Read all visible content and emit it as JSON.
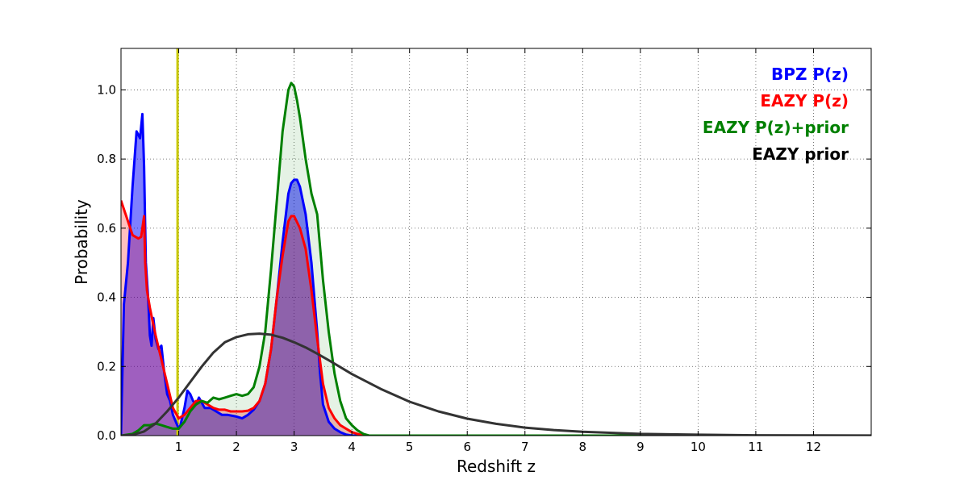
{
  "chart_data": {
    "type": "line",
    "xlabel": "Redshift z",
    "ylabel": "Probability",
    "xlim": [
      0,
      13
    ],
    "ylim": [
      0,
      1.12
    ],
    "grid": true,
    "legend_placement": "top-right",
    "x_ticks": [
      1,
      2,
      3,
      4,
      5,
      6,
      7,
      8,
      9,
      10,
      11,
      12
    ],
    "x_tick_labels": [
      "1",
      "2",
      "3",
      "4",
      "5",
      "6",
      "7",
      "8",
      "9",
      "10",
      "11",
      "12"
    ],
    "y_ticks": [
      0,
      0.2,
      0.4,
      0.6,
      0.8,
      1.0
    ],
    "y_tick_labels": [
      "0.0",
      "0.2",
      "0.4",
      "0.6",
      "0.8",
      "1.0"
    ],
    "vertical_marker": {
      "x": 0.98,
      "color": "#c8c800"
    },
    "series": [
      {
        "name": "BPZ P(z)",
        "color": "#0000ff",
        "fill": "#0000ff",
        "fill_opacity": 0.5,
        "points": [
          [
            0,
            0
          ],
          [
            0.05,
            0.38
          ],
          [
            0.12,
            0.5
          ],
          [
            0.2,
            0.72
          ],
          [
            0.27,
            0.88
          ],
          [
            0.3,
            0.87
          ],
          [
            0.33,
            0.86
          ],
          [
            0.37,
            0.93
          ],
          [
            0.4,
            0.78
          ],
          [
            0.43,
            0.5
          ],
          [
            0.47,
            0.4
          ],
          [
            0.5,
            0.29
          ],
          [
            0.53,
            0.26
          ],
          [
            0.56,
            0.34
          ],
          [
            0.6,
            0.28
          ],
          [
            0.65,
            0.25
          ],
          [
            0.7,
            0.26
          ],
          [
            0.75,
            0.18
          ],
          [
            0.8,
            0.12
          ],
          [
            0.85,
            0.1
          ],
          [
            0.9,
            0.06
          ],
          [
            0.95,
            0.04
          ],
          [
            1.0,
            0.02
          ],
          [
            1.03,
            0.03
          ],
          [
            1.1,
            0.08
          ],
          [
            1.15,
            0.13
          ],
          [
            1.2,
            0.12
          ],
          [
            1.25,
            0.1
          ],
          [
            1.3,
            0.09
          ],
          [
            1.35,
            0.11
          ],
          [
            1.45,
            0.08
          ],
          [
            1.55,
            0.08
          ],
          [
            1.65,
            0.07
          ],
          [
            1.75,
            0.06
          ],
          [
            1.85,
            0.06
          ],
          [
            2.0,
            0.055
          ],
          [
            2.1,
            0.05
          ],
          [
            2.2,
            0.06
          ],
          [
            2.3,
            0.075
          ],
          [
            2.4,
            0.1
          ],
          [
            2.5,
            0.15
          ],
          [
            2.6,
            0.25
          ],
          [
            2.7,
            0.4
          ],
          [
            2.8,
            0.56
          ],
          [
            2.9,
            0.7
          ],
          [
            2.95,
            0.73
          ],
          [
            3.0,
            0.74
          ],
          [
            3.05,
            0.74
          ],
          [
            3.1,
            0.72
          ],
          [
            3.2,
            0.64
          ],
          [
            3.3,
            0.5
          ],
          [
            3.4,
            0.3
          ],
          [
            3.45,
            0.18
          ],
          [
            3.5,
            0.09
          ],
          [
            3.6,
            0.04
          ],
          [
            3.7,
            0.02
          ],
          [
            3.8,
            0.01
          ],
          [
            3.9,
            0.003
          ],
          [
            4.0,
            0
          ],
          [
            13,
            0
          ]
        ]
      },
      {
        "name": "EAZY P(z)",
        "color": "#ff0000",
        "fill": "#ff0000",
        "fill_opacity": 0.25,
        "points": [
          [
            0,
            0.68
          ],
          [
            0.1,
            0.63
          ],
          [
            0.2,
            0.58
          ],
          [
            0.3,
            0.57
          ],
          [
            0.35,
            0.575
          ],
          [
            0.37,
            0.6
          ],
          [
            0.4,
            0.635
          ],
          [
            0.42,
            0.5
          ],
          [
            0.45,
            0.42
          ],
          [
            0.5,
            0.37
          ],
          [
            0.55,
            0.33
          ],
          [
            0.6,
            0.29
          ],
          [
            0.7,
            0.22
          ],
          [
            0.8,
            0.15
          ],
          [
            0.9,
            0.08
          ],
          [
            1.0,
            0.05
          ],
          [
            1.1,
            0.06
          ],
          [
            1.2,
            0.08
          ],
          [
            1.3,
            0.1
          ],
          [
            1.4,
            0.1
          ],
          [
            1.5,
            0.09
          ],
          [
            1.6,
            0.08
          ],
          [
            1.7,
            0.075
          ],
          [
            1.8,
            0.075
          ],
          [
            1.9,
            0.07
          ],
          [
            2.0,
            0.07
          ],
          [
            2.1,
            0.07
          ],
          [
            2.2,
            0.072
          ],
          [
            2.3,
            0.08
          ],
          [
            2.4,
            0.1
          ],
          [
            2.5,
            0.15
          ],
          [
            2.6,
            0.25
          ],
          [
            2.7,
            0.4
          ],
          [
            2.8,
            0.52
          ],
          [
            2.9,
            0.62
          ],
          [
            2.95,
            0.635
          ],
          [
            3.0,
            0.635
          ],
          [
            3.1,
            0.6
          ],
          [
            3.2,
            0.54
          ],
          [
            3.3,
            0.42
          ],
          [
            3.4,
            0.28
          ],
          [
            3.5,
            0.15
          ],
          [
            3.6,
            0.08
          ],
          [
            3.7,
            0.05
          ],
          [
            3.8,
            0.03
          ],
          [
            3.9,
            0.02
          ],
          [
            4.0,
            0.01
          ],
          [
            4.1,
            0.005
          ],
          [
            4.2,
            0
          ],
          [
            13,
            0
          ]
        ]
      },
      {
        "name": "EAZY P(z)+prior",
        "color": "#008000",
        "fill": "#008000",
        "fill_opacity": 0.1,
        "points": [
          [
            0,
            0
          ],
          [
            0.2,
            0.005
          ],
          [
            0.3,
            0.015
          ],
          [
            0.4,
            0.03
          ],
          [
            0.5,
            0.03
          ],
          [
            0.6,
            0.035
          ],
          [
            0.7,
            0.03
          ],
          [
            0.8,
            0.025
          ],
          [
            0.9,
            0.02
          ],
          [
            1.0,
            0.02
          ],
          [
            1.1,
            0.04
          ],
          [
            1.2,
            0.07
          ],
          [
            1.3,
            0.09
          ],
          [
            1.4,
            0.1
          ],
          [
            1.5,
            0.095
          ],
          [
            1.6,
            0.11
          ],
          [
            1.7,
            0.105
          ],
          [
            1.8,
            0.11
          ],
          [
            1.9,
            0.115
          ],
          [
            2.0,
            0.12
          ],
          [
            2.1,
            0.115
          ],
          [
            2.2,
            0.12
          ],
          [
            2.3,
            0.14
          ],
          [
            2.4,
            0.2
          ],
          [
            2.5,
            0.3
          ],
          [
            2.6,
            0.48
          ],
          [
            2.7,
            0.68
          ],
          [
            2.8,
            0.88
          ],
          [
            2.9,
            1.0
          ],
          [
            2.95,
            1.02
          ],
          [
            3.0,
            1.01
          ],
          [
            3.05,
            0.97
          ],
          [
            3.1,
            0.92
          ],
          [
            3.2,
            0.8
          ],
          [
            3.3,
            0.7
          ],
          [
            3.4,
            0.64
          ],
          [
            3.5,
            0.45
          ],
          [
            3.6,
            0.3
          ],
          [
            3.7,
            0.18
          ],
          [
            3.8,
            0.1
          ],
          [
            3.9,
            0.05
          ],
          [
            4.0,
            0.03
          ],
          [
            4.1,
            0.015
          ],
          [
            4.2,
            0.005
          ],
          [
            4.3,
            0
          ],
          [
            13,
            0
          ]
        ]
      },
      {
        "name": "EAZY prior",
        "color": "#333333",
        "fill": null,
        "fill_opacity": 0,
        "points": [
          [
            0,
            0
          ],
          [
            0.2,
            0.002
          ],
          [
            0.4,
            0.012
          ],
          [
            0.6,
            0.035
          ],
          [
            0.8,
            0.07
          ],
          [
            1.0,
            0.11
          ],
          [
            1.2,
            0.155
          ],
          [
            1.4,
            0.2
          ],
          [
            1.6,
            0.24
          ],
          [
            1.8,
            0.27
          ],
          [
            2.0,
            0.285
          ],
          [
            2.2,
            0.293
          ],
          [
            2.4,
            0.295
          ],
          [
            2.6,
            0.292
          ],
          [
            2.8,
            0.283
          ],
          [
            3.0,
            0.27
          ],
          [
            3.2,
            0.255
          ],
          [
            3.4,
            0.237
          ],
          [
            3.6,
            0.218
          ],
          [
            3.8,
            0.198
          ],
          [
            4.0,
            0.178
          ],
          [
            4.5,
            0.135
          ],
          [
            5.0,
            0.098
          ],
          [
            5.5,
            0.07
          ],
          [
            6.0,
            0.049
          ],
          [
            6.5,
            0.034
          ],
          [
            7.0,
            0.023
          ],
          [
            7.5,
            0.016
          ],
          [
            8.0,
            0.011
          ],
          [
            9.0,
            0.005
          ],
          [
            10.0,
            0.0025
          ],
          [
            11.0,
            0.001
          ],
          [
            12.0,
            0.0005
          ],
          [
            13.0,
            0.0002
          ]
        ]
      }
    ]
  }
}
